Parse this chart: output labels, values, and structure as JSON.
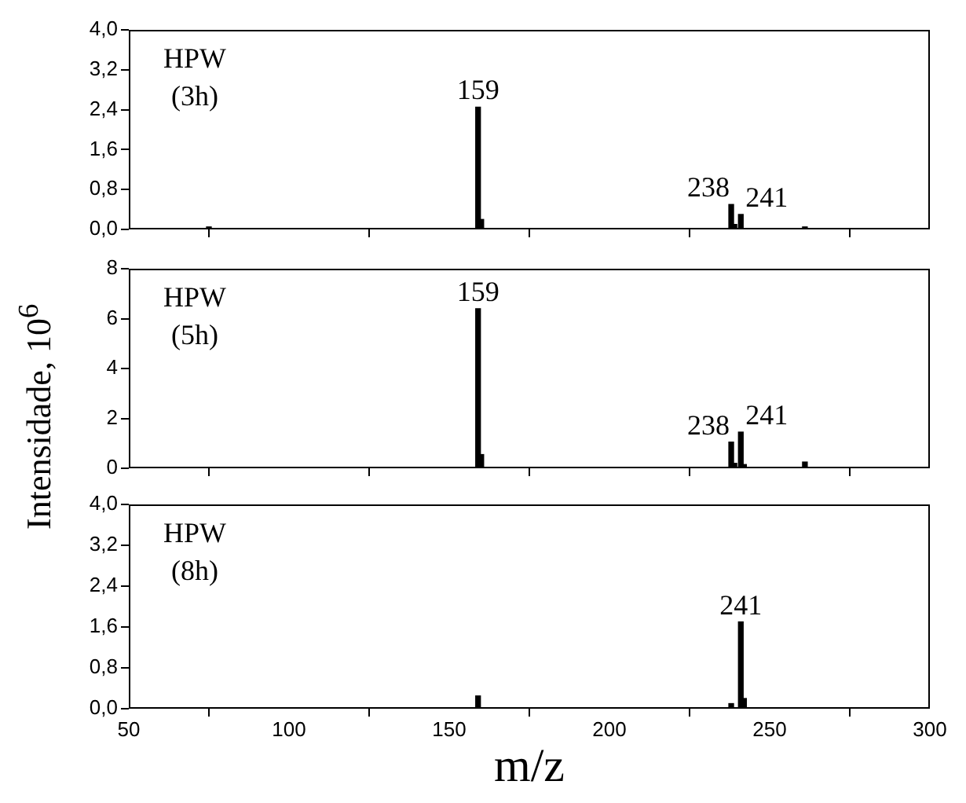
{
  "chart_data": [
    {
      "type": "bar",
      "x": [
        75,
        159,
        160,
        238,
        239,
        241,
        261
      ],
      "values": [
        0.05,
        2.45,
        0.2,
        0.5,
        0.1,
        0.3,
        0.05
      ],
      "color": "#000000",
      "xlim": [
        50,
        300
      ],
      "xticks": [
        50,
        100,
        150,
        200,
        250,
        300
      ],
      "ylim": [
        0,
        4
      ],
      "yticks": [
        {
          "value": 0,
          "label": "0,0"
        },
        {
          "value": 0.8,
          "label": "0,8"
        },
        {
          "value": 1.6,
          "label": "1,6"
        },
        {
          "value": 2.4,
          "label": "2,4"
        },
        {
          "value": 3.2,
          "label": "3,2"
        },
        {
          "value": 4,
          "label": "4,0"
        }
      ],
      "tick_labels": "y",
      "grid": false,
      "legend": false,
      "annotations": [
        "HPW",
        "(3h)",
        {
          "text": "159",
          "x": 159,
          "y": 2.45
        },
        {
          "text": "238",
          "x": 238,
          "y": 0.5
        },
        {
          "text": "241",
          "x": 241,
          "y": 0.3
        }
      ]
    },
    {
      "type": "bar",
      "x": [
        159,
        160,
        238,
        239,
        241,
        242,
        261
      ],
      "values": [
        6.4,
        0.55,
        1.05,
        0.2,
        1.45,
        0.15,
        0.25
      ],
      "color": "#000000",
      "xlim": [
        50,
        300
      ],
      "xticks": [
        50,
        100,
        150,
        200,
        250,
        300
      ],
      "ylim": [
        0,
        8
      ],
      "yticks": [
        0,
        2,
        4,
        6,
        8
      ],
      "tick_labels": "y",
      "grid": false,
      "legend": false,
      "ylabel": "Intensidade, 10$^{6}$",
      "annotations": [
        "HPW",
        "(5h)",
        {
          "text": "159",
          "x": 159,
          "y": 6.4
        },
        {
          "text": "238",
          "x": 238,
          "y": 1.05
        },
        {
          "text": "241",
          "x": 241,
          "y": 1.45
        }
      ]
    },
    {
      "type": "bar",
      "x": [
        159,
        238,
        241,
        242
      ],
      "values": [
        0.25,
        0.1,
        1.7,
        0.2
      ],
      "color": "#000000",
      "xlim": [
        50,
        300
      ],
      "xticks": [
        50,
        100,
        150,
        200,
        250,
        300
      ],
      "ylim": [
        0,
        4
      ],
      "yticks": [
        {
          "value": 0,
          "label": "0,0"
        },
        {
          "value": 0.8,
          "label": "0,8"
        },
        {
          "value": 1.6,
          "label": "1,6"
        },
        {
          "value": 2.4,
          "label": "2,4"
        },
        {
          "value": 3.2,
          "label": "3,2"
        },
        {
          "value": 4,
          "label": "4,0"
        }
      ],
      "grid": false,
      "legend": false,
      "xlabel": "m/z",
      "annotations": [
        "HPW",
        "(8h)",
        {
          "text": "241",
          "x": 241,
          "y": 1.7
        }
      ]
    }
  ]
}
